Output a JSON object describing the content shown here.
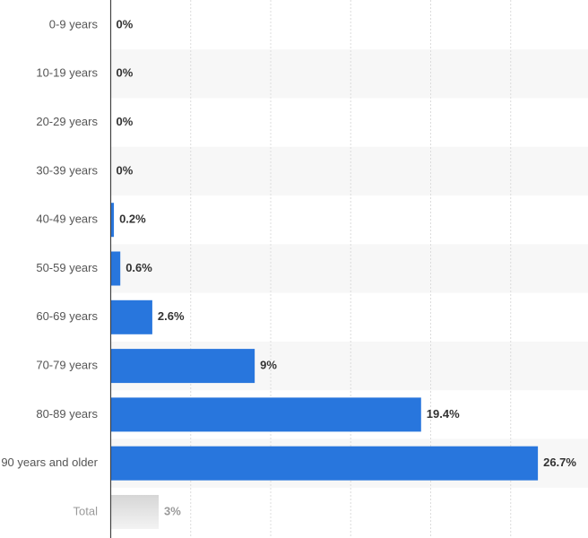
{
  "chart_data": {
    "type": "bar",
    "orientation": "horizontal",
    "categories": [
      "0-9 years",
      "10-19 years",
      "20-29 years",
      "30-39 years",
      "40-49 years",
      "50-59 years",
      "60-69 years",
      "70-79 years",
      "80-89 years",
      "90 years and older"
    ],
    "values": [
      0,
      0,
      0,
      0,
      0.2,
      0.6,
      2.6,
      9,
      19.4,
      26.7
    ],
    "value_labels": [
      "0%",
      "0%",
      "0%",
      "0%",
      "0.2%",
      "0.6%",
      "2.6%",
      "9%",
      "19.4%",
      "26.7%"
    ],
    "total": {
      "label": "Total",
      "value": 3,
      "value_label": "3%"
    },
    "xlim": [
      0,
      30
    ],
    "grid": true,
    "colors": {
      "bar": "#2876dd",
      "total_bar_top": "#d6d6d6",
      "total_bar_bottom": "#f3f3f3",
      "band": "#f7f7f7",
      "axis": "#444444",
      "grid": "#dcdcdc"
    }
  }
}
